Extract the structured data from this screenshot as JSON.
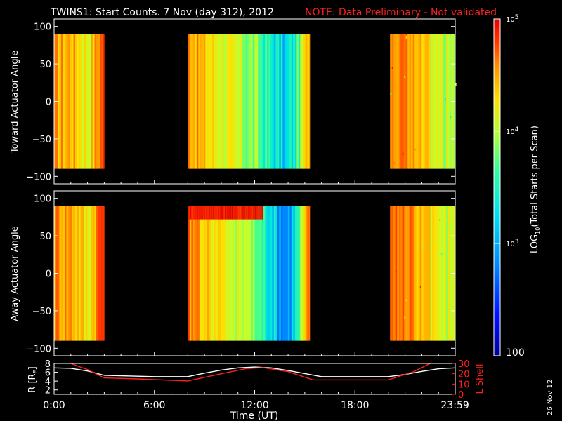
{
  "header": {
    "title": "TWINS1: Start Counts.  7 Nov (day 312), 2012",
    "note": "NOTE: Data Preliminary - Not validated"
  },
  "colors": {
    "background": "#000000",
    "axes": "#ffffff",
    "note": "#ff2020",
    "lshell_line": "#ff2020",
    "r_line": "#ffffff",
    "colormap": [
      "#0000a0",
      "#0020ff",
      "#00a0ff",
      "#00e8e0",
      "#40ff90",
      "#c0ff30",
      "#ffe000",
      "#ff9000",
      "#ff3000",
      "#e00000"
    ]
  },
  "chart_data": [
    {
      "type": "heatmap",
      "panel": "toward",
      "ylabel": "Toward Actuator Angle",
      "ylim": [
        -110,
        110
      ],
      "yticks": [
        "100",
        "50",
        "0",
        "-50",
        "-100"
      ],
      "data_range_angle": [
        -90,
        90
      ],
      "xlim_hours": [
        0,
        24
      ],
      "data_intervals_hours": [
        [
          0.0,
          3.0
        ],
        [
          8.0,
          15.3
        ],
        [
          20.1,
          24.0
        ]
      ],
      "log10_range": [
        2,
        5
      ],
      "time_profile": [
        {
          "t": 0.0,
          "v": 4.2
        },
        {
          "t": 1.0,
          "v": 4.25
        },
        {
          "t": 2.0,
          "v": 3.85
        },
        {
          "t": 2.8,
          "v": 4.6
        },
        {
          "t": 8.0,
          "v": 4.4
        },
        {
          "t": 9.0,
          "v": 4.05
        },
        {
          "t": 10.0,
          "v": 3.85
        },
        {
          "t": 11.0,
          "v": 3.65
        },
        {
          "t": 12.0,
          "v": 3.45
        },
        {
          "t": 13.0,
          "v": 3.05
        },
        {
          "t": 13.8,
          "v": 2.85
        },
        {
          "t": 14.5,
          "v": 3.2
        },
        {
          "t": 15.2,
          "v": 4.3
        },
        {
          "t": 20.1,
          "v": 4.55
        },
        {
          "t": 21.0,
          "v": 4.35
        },
        {
          "t": 22.0,
          "v": 4.05
        },
        {
          "t": 23.0,
          "v": 3.7
        },
        {
          "t": 24.0,
          "v": 3.65
        }
      ]
    },
    {
      "type": "heatmap",
      "panel": "away",
      "ylabel": "Away Actuator Angle",
      "ylim": [
        -110,
        110
      ],
      "yticks": [
        "100",
        "50",
        "0",
        "-50",
        "-100"
      ],
      "data_range_angle": [
        -90,
        90
      ],
      "xlim_hours": [
        0,
        24
      ],
      "data_intervals_hours": [
        [
          0.0,
          3.0
        ],
        [
          8.0,
          15.3
        ],
        [
          20.1,
          24.0
        ]
      ],
      "log10_range": [
        2,
        5
      ],
      "time_profile": [
        {
          "t": 0.0,
          "v": 4.35
        },
        {
          "t": 1.0,
          "v": 4.3
        },
        {
          "t": 2.0,
          "v": 3.9
        },
        {
          "t": 2.8,
          "v": 4.7
        },
        {
          "t": 8.0,
          "v": 4.4
        },
        {
          "t": 9.0,
          "v": 4.1
        },
        {
          "t": 10.0,
          "v": 3.9
        },
        {
          "t": 11.0,
          "v": 3.7
        },
        {
          "t": 12.0,
          "v": 3.45
        },
        {
          "t": 13.0,
          "v": 3.0
        },
        {
          "t": 13.8,
          "v": 2.6
        },
        {
          "t": 14.5,
          "v": 3.1
        },
        {
          "t": 15.2,
          "v": 4.4
        },
        {
          "t": 20.1,
          "v": 4.6
        },
        {
          "t": 21.0,
          "v": 4.4
        },
        {
          "t": 22.0,
          "v": 4.1
        },
        {
          "t": 23.0,
          "v": 3.75
        },
        {
          "t": 24.0,
          "v": 3.7
        }
      ],
      "high_angle_band": {
        "t_range": [
          8.0,
          12.5
        ],
        "angle_range": [
          72,
          90
        ],
        "v": 4.85
      }
    },
    {
      "type": "line",
      "panel": "orbit",
      "xlabel": "Time (UT)",
      "xticks": [
        "0:00",
        "6:00",
        "12:00",
        "18:00",
        "23:59"
      ],
      "xlim_hours": [
        0,
        24
      ],
      "left_axis": {
        "label": "R [R",
        "label_sub": "E",
        "label_end": "]",
        "ylim": [
          1,
          8
        ],
        "yticks": [
          "8",
          "6",
          "4",
          "2"
        ]
      },
      "right_axis": {
        "label": "L Shell",
        "ylim": [
          0,
          30
        ],
        "yticks": [
          "30",
          "20",
          "10",
          "0"
        ]
      },
      "series": [
        {
          "axis": "left",
          "color": "#ffffff",
          "x": [
            0,
            1,
            2,
            3,
            4,
            5,
            6,
            7,
            8,
            9,
            10,
            11,
            12,
            13,
            14,
            15,
            16,
            17,
            18,
            19,
            20,
            21,
            22,
            23,
            24
          ],
          "y": [
            7.0,
            6.9,
            6.3,
            5.3,
            5.2,
            5.1,
            5.0,
            5.0,
            5.0,
            5.8,
            6.5,
            7.0,
            7.2,
            7.0,
            6.4,
            5.7,
            5.0,
            5.0,
            5.0,
            5.0,
            5.0,
            5.5,
            6.2,
            6.8,
            7.0
          ]
        },
        {
          "axis": "right",
          "color": "#ff2020",
          "x": [
            1.0,
            2.0,
            3.0,
            5.0,
            8.0,
            10.0,
            11.5,
            12.5,
            14.0,
            15.5,
            17.0,
            20.0,
            21.5,
            22.5
          ],
          "y": [
            30,
            24,
            16,
            15,
            13,
            20,
            25,
            26,
            22,
            14,
            14,
            14,
            22,
            30
          ]
        }
      ]
    }
  ],
  "colorbar": {
    "label_prefix": "LOG",
    "label_sub": "10",
    "label_suffix": "(Total Starts per Scan)",
    "ticks": [
      {
        "base": "10",
        "exp": "5",
        "value": 5
      },
      {
        "base": "10",
        "exp": "4",
        "value": 4
      },
      {
        "base": "10",
        "exp": "3",
        "value": 3
      }
    ],
    "bottom_label": "100"
  },
  "footer": {
    "date_stamp": "26 Nov 12"
  }
}
